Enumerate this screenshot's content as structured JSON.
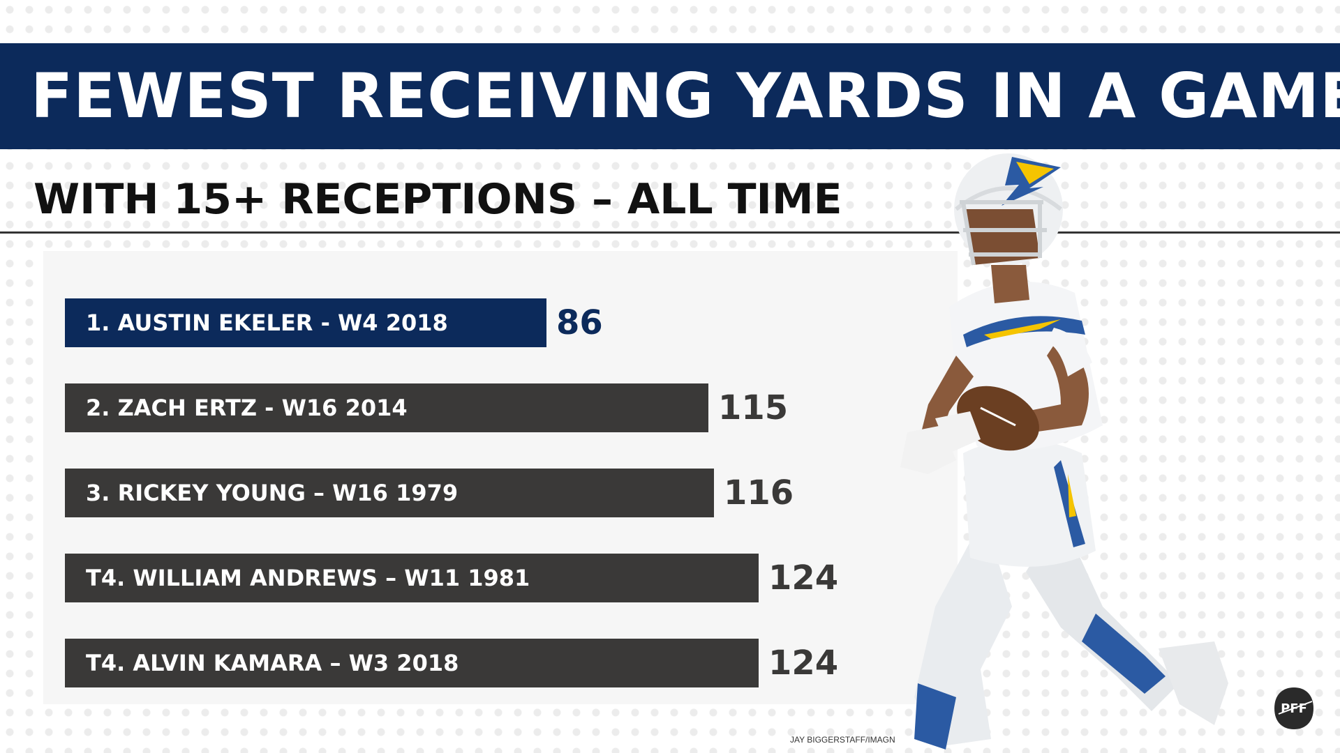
{
  "title": "FEWEST RECEIVING YARDS IN A GAME",
  "subtitle": "WITH 15+ RECEPTIONS – ALL TIME",
  "credit": "JAY BIGGERSTAFF/IMAGN",
  "logo_text": "PFF",
  "colors": {
    "banner": "#0c2a5b",
    "highlight_bar": "#0c2a5b",
    "bar": "#3a3938",
    "highlight_value": "#0c2a5b",
    "value": "#3a3938"
  },
  "chart_data": {
    "type": "bar",
    "orientation": "horizontal",
    "categories": [
      "1. AUSTIN EKELER - W4 2018",
      "2. ZACH ERTZ - W16 2014",
      "3. RICKEY YOUNG – W16 1979",
      "T4. WILLIAM ANDREWS – W11 1981",
      "T4. ALVIN KAMARA – W3 2018"
    ],
    "values": [
      86,
      115,
      116,
      124,
      124
    ],
    "highlight_index": 0,
    "title": "FEWEST RECEIVING YARDS IN A GAME",
    "subtitle": "WITH 15+ RECEPTIONS – ALL TIME",
    "xlabel": "",
    "ylabel": "",
    "grid": false,
    "legend": "none"
  }
}
